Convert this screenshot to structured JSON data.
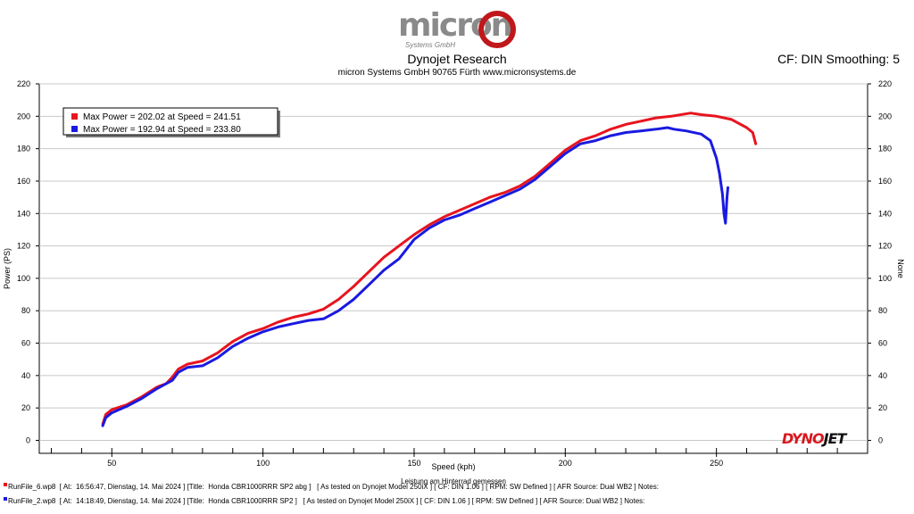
{
  "header": {
    "logo_text": "micron",
    "logo_sub": "Systems GmbH",
    "title": "Dynojet Research",
    "subtitle": "micron Systems GmbH  90765 Fürth www.micronsystems.de",
    "cf_smoothing": "CF: DIN Smoothing: 5"
  },
  "brand": {
    "dynojet_red": "DYNO",
    "dynojet_black": "JET"
  },
  "colors": {
    "run1": "#e8141e",
    "run2": "#1a1ae0",
    "grid": "#c8c8c8"
  },
  "chart_data": {
    "type": "line",
    "title": "Dynojet Research",
    "xlabel": "Speed (kph)",
    "xlabel_caption": "Leistung am Hinterrad gemessen",
    "ylabel": "Power (PS)",
    "ylabel_right": "None",
    "xlim": [
      26,
      300
    ],
    "ylim": [
      -8,
      220
    ],
    "xticks": [
      50,
      100,
      150,
      200,
      250
    ],
    "yticks": [
      0,
      20,
      40,
      60,
      80,
      100,
      120,
      140,
      160,
      180,
      200,
      220
    ],
    "legend_position": "top-left",
    "series": [
      {
        "name": "Max Power = 202.02 at Speed = 241.51",
        "color": "#e8141e",
        "points": [
          [
            47,
            10
          ],
          [
            48,
            16
          ],
          [
            50,
            19
          ],
          [
            55,
            22
          ],
          [
            60,
            27
          ],
          [
            65,
            33
          ],
          [
            68,
            35
          ],
          [
            70,
            39
          ],
          [
            72,
            44
          ],
          [
            75,
            47
          ],
          [
            80,
            49
          ],
          [
            85,
            54
          ],
          [
            90,
            61
          ],
          [
            95,
            66
          ],
          [
            100,
            69
          ],
          [
            105,
            73
          ],
          [
            110,
            76
          ],
          [
            115,
            78
          ],
          [
            120,
            81
          ],
          [
            125,
            87
          ],
          [
            130,
            95
          ],
          [
            135,
            104
          ],
          [
            140,
            113
          ],
          [
            145,
            120
          ],
          [
            150,
            127
          ],
          [
            155,
            133
          ],
          [
            160,
            138
          ],
          [
            165,
            142
          ],
          [
            170,
            146
          ],
          [
            175,
            150
          ],
          [
            180,
            153
          ],
          [
            185,
            157
          ],
          [
            190,
            163
          ],
          [
            195,
            171
          ],
          [
            200,
            179
          ],
          [
            205,
            185
          ],
          [
            210,
            188
          ],
          [
            215,
            192
          ],
          [
            220,
            195
          ],
          [
            225,
            197
          ],
          [
            230,
            199
          ],
          [
            235,
            200
          ],
          [
            241.5,
            202
          ],
          [
            245,
            201
          ],
          [
            250,
            200
          ],
          [
            255,
            198
          ],
          [
            260,
            193
          ],
          [
            262,
            190
          ],
          [
            263,
            183
          ]
        ]
      },
      {
        "name": "Max Power = 192.94 at Speed = 233.80",
        "color": "#1a1ae0",
        "points": [
          [
            47,
            9
          ],
          [
            48,
            14
          ],
          [
            50,
            17
          ],
          [
            55,
            21
          ],
          [
            60,
            26
          ],
          [
            65,
            32
          ],
          [
            68,
            35
          ],
          [
            70,
            37
          ],
          [
            72,
            42
          ],
          [
            75,
            45
          ],
          [
            80,
            46
          ],
          [
            85,
            51
          ],
          [
            90,
            58
          ],
          [
            95,
            63
          ],
          [
            100,
            67
          ],
          [
            105,
            70
          ],
          [
            110,
            72
          ],
          [
            115,
            74
          ],
          [
            120,
            75
          ],
          [
            125,
            80
          ],
          [
            130,
            87
          ],
          [
            135,
            96
          ],
          [
            140,
            105
          ],
          [
            145,
            112
          ],
          [
            150,
            124
          ],
          [
            155,
            131
          ],
          [
            160,
            136
          ],
          [
            165,
            139
          ],
          [
            170,
            143
          ],
          [
            175,
            147
          ],
          [
            180,
            151
          ],
          [
            185,
            155
          ],
          [
            190,
            161
          ],
          [
            195,
            169
          ],
          [
            200,
            177
          ],
          [
            205,
            183
          ],
          [
            210,
            185
          ],
          [
            215,
            188
          ],
          [
            220,
            190
          ],
          [
            225,
            191
          ],
          [
            230,
            192
          ],
          [
            233.8,
            193
          ],
          [
            236,
            192
          ],
          [
            240,
            191
          ],
          [
            245,
            189
          ],
          [
            248,
            185
          ],
          [
            250,
            174
          ],
          [
            251,
            165
          ],
          [
            252,
            152
          ],
          [
            252.5,
            140
          ],
          [
            253,
            134
          ],
          [
            253.5,
            150
          ],
          [
            253.8,
            156
          ]
        ]
      }
    ]
  },
  "footer": {
    "run1": "RunFile_6.wp8  [ At:  16:56:47, Dienstag, 14. Mai 2024 ] [Title:  Honda CBR1000RRR SP2 abg ]   [ As tested on Dynojet Model 250iX ] [ CF: DIN 1.06 ] [ RPM: SW Defined ] [ AFR Source: Dual WB2 ] Notes:",
    "run2": "RunFile_2.wp8  [ At:  14:18:49, Dienstag, 14. Mai 2024 ] [Title:  Honda CBR1000RRR SP2 ]   [ As tested on Dynojet Model 250iX ] [ CF: DIN 1.06 ] [ RPM: SW Defined ] [ AFR Source: Dual WB2 ] Notes:"
  }
}
